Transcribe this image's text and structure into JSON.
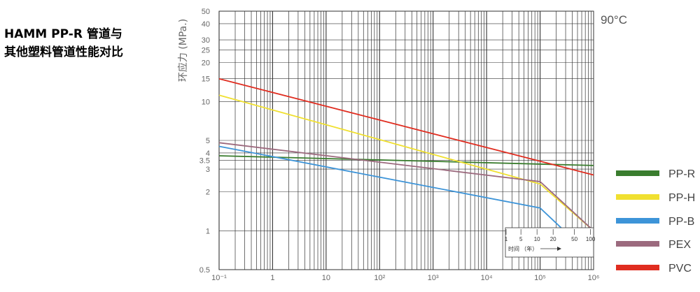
{
  "title": "HAMM PP-R 管道与\n其他塑料管道性能对比",
  "chart_data": {
    "type": "line",
    "ylabel": "环应力 (MPa.)",
    "temperature": "90°C",
    "yscale": "log",
    "xscale": "log",
    "xlim": [
      0.1,
      1000000
    ],
    "ylim": [
      0.5,
      50
    ],
    "x_tick_labels": [
      "10⁻¹",
      "1",
      "10",
      "10²",
      "10³",
      "10⁴",
      "10⁵",
      "10⁶"
    ],
    "y_tick_labels": [
      "0.5",
      "1",
      "2",
      "3",
      "3.5",
      "4",
      "5",
      "10",
      "15",
      "20",
      "25",
      "30",
      "40",
      "50"
    ],
    "y_tick_values": [
      0.5,
      1,
      2,
      3,
      3.5,
      4,
      5,
      10,
      15,
      20,
      25,
      30,
      40,
      50
    ],
    "grid": true,
    "legend_position": "right",
    "series": [
      {
        "name": "PP-R",
        "color": "#3a7d2e",
        "x": [
          0.1,
          1000000
        ],
        "y": [
          3.8,
          3.2
        ]
      },
      {
        "name": "PP-H",
        "color": "#f0e030",
        "x": [
          0.1,
          100000,
          1000000
        ],
        "y": [
          11.2,
          2.3,
          1.0
        ]
      },
      {
        "name": "PP-B",
        "color": "#3d94d8",
        "x": [
          0.1,
          100000,
          500000
        ],
        "y": [
          4.5,
          1.5,
          0.8
        ]
      },
      {
        "name": "PEX",
        "color": "#9c6a7e",
        "x": [
          0.1,
          100000,
          1000000
        ],
        "y": [
          4.8,
          2.4,
          1.0
        ]
      },
      {
        "name": "PVC",
        "color": "#e02d20",
        "x": [
          0.1,
          1000000
        ],
        "y": [
          15.0,
          2.7
        ]
      }
    ],
    "inset": {
      "tick_labels": [
        "1",
        "5",
        "10",
        "20",
        "50",
        "100"
      ],
      "tick_values": [
        1,
        5,
        10,
        20,
        50,
        100
      ],
      "label": "时间 （年）"
    }
  }
}
